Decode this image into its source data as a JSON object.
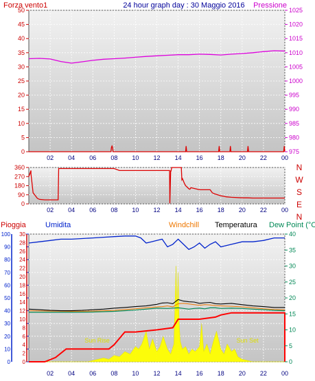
{
  "header": {
    "left_label": "Forza vento1",
    "title": "24 hour graph day : 30 Maggio 2016",
    "right_label": "Pressione"
  },
  "time_ticks": [
    "02",
    "04",
    "06",
    "08",
    "10",
    "12",
    "14",
    "16",
    "18",
    "20",
    "22",
    "00"
  ],
  "middle_right_labels": [
    "N",
    "W",
    "S",
    "E",
    "N"
  ],
  "legend": {
    "pioggia": "Pioggia",
    "umidita": "Umidita",
    "windchill": "Windchill",
    "temperatura": "Temperatura",
    "dewpoint": "Dew Point (°C",
    "sunrise": "Sun Rise",
    "sunset": "Sun Set"
  },
  "colors": {
    "wind": "#dd0000",
    "pressure": "#dd00dd",
    "humidity": "#0022cc",
    "temperature": "#000000",
    "dewpoint": "#008855",
    "windchill": "#ee7700",
    "rain": "#ff0000",
    "solar": "#ffff00",
    "panel_top": "#f2f2f2",
    "panel_bottom": "#c4c4c4"
  },
  "chart_data": [
    {
      "type": "line",
      "panel": "top",
      "ylim_left": [
        0,
        50
      ],
      "ylim_right": [
        975,
        1025
      ],
      "yticks_left": [
        "0",
        "5",
        "10",
        "15",
        "20",
        "25",
        "30",
        "35",
        "40",
        "45",
        "50"
      ],
      "yticks_right": [
        "975",
        "980",
        "985",
        "990",
        "995",
        "1000",
        "1005",
        "1010",
        "1015",
        "1020",
        "1025"
      ],
      "series": [
        {
          "name": "Pressione",
          "axis": "right",
          "x": [
            0,
            1,
            2,
            3,
            4,
            5,
            6,
            7,
            8,
            9,
            10,
            11,
            12,
            13,
            14,
            15,
            16,
            17,
            18,
            19,
            20,
            21,
            22,
            23,
            24
          ],
          "values": [
            1007.9,
            1008.0,
            1007.8,
            1006.9,
            1006.3,
            1006.8,
            1007.3,
            1007.7,
            1007.9,
            1008.1,
            1008.4,
            1008.7,
            1008.9,
            1009.1,
            1009.3,
            1009.3,
            1009.5,
            1009.4,
            1009.2,
            1009.5,
            1009.7,
            1010.0,
            1010.4,
            1010.7,
            1010.6
          ]
        },
        {
          "name": "Forza vento1",
          "axis": "left",
          "x": [
            0,
            7.7,
            7.75,
            7.8,
            7.85,
            7.9,
            14.7,
            14.75,
            14.8,
            17.8,
            17.85,
            17.9,
            18.85,
            18.9,
            18.95,
            20.5,
            20.55,
            20.6,
            23.9,
            23.95,
            24
          ],
          "values": [
            0,
            0,
            1.5,
            2,
            1.5,
            0,
            0,
            2,
            0,
            0,
            2,
            0,
            0,
            2,
            0,
            0,
            2,
            0,
            0,
            2,
            0
          ]
        }
      ]
    },
    {
      "type": "line",
      "panel": "middle",
      "ylim": [
        0,
        360
      ],
      "yticks": [
        "0",
        "90",
        "180",
        "270",
        "360"
      ],
      "series": [
        {
          "name": "",
          "x": [
            0,
            0.2,
            0.2,
            0.4,
            0.8,
            1.0,
            1.5,
            2.0,
            2.7,
            2.75,
            2.8,
            5.0,
            7.0,
            8.0,
            8.5,
            10.0,
            11.0,
            12.0,
            13.0,
            13.2,
            13.22,
            13.3,
            13.32,
            13.4,
            14.0,
            14.3,
            14.35,
            14.4,
            14.6,
            14.7,
            15.0,
            15.1,
            15.2,
            16.0,
            16.2,
            17.0,
            17.2,
            17.4,
            18.0,
            18.3,
            18.5,
            19.0,
            20.0,
            20.5,
            21.0,
            22.0,
            23.0,
            24.0
          ],
          "values": [
            270,
            330,
            300,
            110,
            55,
            45,
            40,
            40,
            40,
            40,
            350,
            350,
            350,
            350,
            330,
            330,
            330,
            330,
            330,
            330,
            5,
            330,
            320,
            360,
            360,
            360,
            240,
            250,
            200,
            180,
            150,
            145,
            160,
            140,
            140,
            140,
            110,
            100,
            80,
            75,
            70,
            65,
            60,
            60,
            58,
            58,
            58,
            58
          ]
        }
      ]
    },
    {
      "type": "line",
      "panel": "bottom",
      "ylim_left": [
        0,
        100
      ],
      "ylim_right": [
        0,
        40
      ],
      "yticks_left": [
        "0",
        "10",
        "20",
        "30",
        "40",
        "50",
        "60",
        "70",
        "80",
        "90",
        "100"
      ],
      "yticks_right": [
        "0",
        "5",
        "10",
        "15",
        "20",
        "25",
        "30",
        "35",
        "40"
      ],
      "rain_ticks": [
        "0",
        "2",
        "4",
        "6",
        "8",
        "10",
        "12",
        "14",
        "16",
        "18",
        "20",
        "22",
        "24",
        "26",
        "28",
        "30"
      ],
      "series": [
        {
          "name": "Umidita",
          "axis": "left",
          "x": [
            0,
            1,
            2,
            3,
            4,
            5,
            6,
            7,
            8,
            9,
            10,
            10.5,
            11,
            11.5,
            12,
            12.5,
            13,
            13.5,
            14,
            14.5,
            15,
            15.5,
            16,
            16.5,
            17,
            17.5,
            18,
            18.5,
            19,
            20,
            21,
            22,
            23,
            24
          ],
          "values": [
            93,
            94,
            95,
            96,
            96,
            96.5,
            97,
            97.5,
            98,
            98.5,
            98.5,
            97,
            93,
            94,
            95,
            96,
            90,
            92,
            96,
            92,
            88,
            90,
            93,
            89,
            92,
            94,
            90,
            91,
            92,
            94,
            94,
            95,
            97,
            97
          ]
        },
        {
          "name": "Temperatura",
          "axis": "right",
          "x": [
            0,
            1,
            2,
            3,
            4,
            5,
            6,
            7,
            8,
            9,
            10,
            11,
            12,
            12.5,
            13,
            13.5,
            14,
            14.5,
            15,
            15.5,
            16,
            16.5,
            17,
            17.5,
            18,
            19,
            20,
            21,
            22,
            23,
            24
          ],
          "values": [
            16.5,
            16.3,
            16.1,
            16,
            16,
            16.1,
            16.3,
            16.5,
            16.8,
            17,
            17.3,
            17.5,
            18,
            18.4,
            18.5,
            18.2,
            19.5,
            19,
            18.8,
            18.7,
            18.3,
            18.5,
            18.6,
            18.2,
            18.1,
            18.3,
            17.9,
            17.5,
            17.3,
            17,
            17
          ]
        },
        {
          "name": "Windchill",
          "axis": "right",
          "x": [
            0,
            2,
            4,
            6,
            8,
            10,
            12,
            12.5,
            13,
            13.5,
            14,
            14.5,
            15,
            15.5,
            16,
            16.5,
            17,
            17.5,
            18,
            19,
            20,
            21,
            22,
            23,
            24
          ],
          "values": [
            16,
            15.9,
            15.8,
            15.9,
            16.1,
            16.6,
            17.2,
            17.3,
            17.5,
            17.2,
            18.2,
            18.3,
            18.1,
            17.9,
            17.7,
            17.9,
            17.8,
            17.6,
            17.5,
            17.4,
            17.2,
            16.9,
            16.6,
            16.4,
            16.3
          ]
        },
        {
          "name": "Dew Point",
          "axis": "right",
          "x": [
            0,
            2,
            4,
            6,
            8,
            10,
            12,
            13,
            14,
            14.5,
            15,
            15.5,
            16,
            16.5,
            17,
            17.5,
            18,
            19,
            20,
            21,
            22,
            23,
            24
          ],
          "values": [
            15.5,
            15.5,
            15.5,
            15.6,
            15.8,
            16.2,
            16.8,
            16.7,
            16.9,
            16.7,
            16.5,
            16.7,
            16.8,
            16.6,
            16.9,
            16.9,
            16.7,
            16.8,
            16.7,
            16.5,
            16.3,
            16.1,
            16
          ]
        },
        {
          "name": "Pioggia",
          "axis": "rain",
          "x": [
            0,
            1.5,
            2.5,
            3,
            3.5,
            4,
            7.5,
            8,
            9,
            10,
            12,
            13.5,
            14,
            15,
            16,
            17.5,
            18,
            19,
            20,
            24,
            24
          ],
          "values": [
            0,
            0,
            1,
            2,
            3,
            3,
            3,
            4,
            7,
            7,
            7.5,
            8,
            10,
            10,
            10,
            10.5,
            11,
            11.5,
            11.5,
            11.5,
            0
          ]
        },
        {
          "name": "Solar",
          "axis": "left",
          "x": [
            0,
            5.5,
            6,
            6.5,
            7,
            7.5,
            8,
            8.5,
            9,
            9.5,
            10,
            10.3,
            10.6,
            11,
            11.3,
            11.6,
            12,
            12.3,
            12.6,
            13,
            13.3,
            13.6,
            13.8,
            13.9,
            14.0,
            14.1,
            14.2,
            14.4,
            14.7,
            15,
            15.3,
            15.6,
            16,
            16.2,
            16.4,
            16.7,
            17,
            17.3,
            17.6,
            18,
            18.3,
            18.6,
            19,
            19.3,
            19.6,
            20,
            20.5,
            21,
            24
          ],
          "values": [
            0,
            0,
            1,
            2,
            3,
            2,
            5,
            4,
            8,
            6,
            12,
            10,
            14,
            24,
            10,
            18,
            8,
            12,
            20,
            10,
            6,
            14,
            75,
            40,
            70,
            30,
            16,
            10,
            12,
            6,
            10,
            8,
            12,
            30,
            8,
            14,
            6,
            16,
            24,
            10,
            6,
            14,
            8,
            10,
            4,
            2,
            1,
            0,
            0
          ]
        }
      ]
    }
  ]
}
